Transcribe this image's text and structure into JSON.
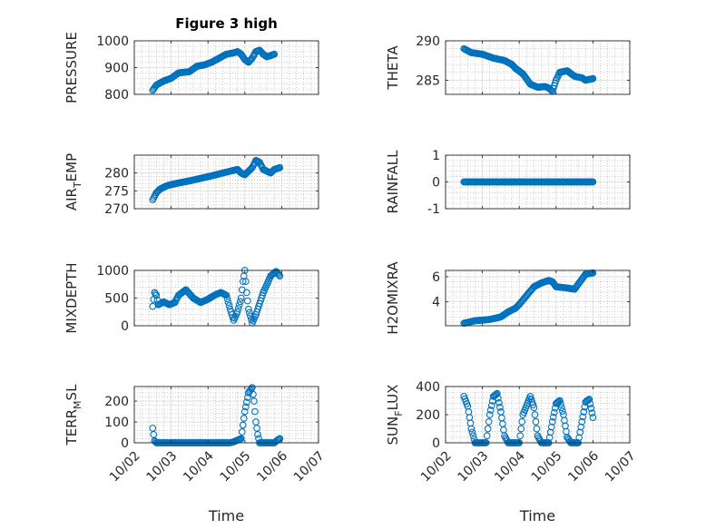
{
  "figure": {
    "title": "Figure 3 high"
  },
  "colors": {
    "marker": "#0072BD",
    "axis": "#262626",
    "grid": "#b0b0b0"
  },
  "chart_data": [
    {
      "type": "scatter",
      "id": "pressure",
      "ylabel": "PRESSURE",
      "xlim": [
        0,
        5
      ],
      "ylim": [
        800,
        1000
      ],
      "yticks": [
        800,
        900,
        1000
      ],
      "yticklabels": [
        "800",
        "900",
        "1000"
      ],
      "xticks": [
        0,
        1,
        2,
        3,
        4,
        5
      ],
      "xticklabels": [],
      "title": "Figure 3 high",
      "keypoints": [
        [
          0.5,
          815
        ],
        [
          0.6,
          835
        ],
        [
          0.8,
          850
        ],
        [
          1.0,
          860
        ],
        [
          1.2,
          880
        ],
        [
          1.5,
          885
        ],
        [
          1.7,
          905
        ],
        [
          1.9,
          910
        ],
        [
          2.1,
          920
        ],
        [
          2.3,
          935
        ],
        [
          2.5,
          950
        ],
        [
          2.7,
          955
        ],
        [
          2.8,
          960
        ],
        [
          2.9,
          950
        ],
        [
          3.0,
          930
        ],
        [
          3.1,
          920
        ],
        [
          3.2,
          935
        ],
        [
          3.3,
          960
        ],
        [
          3.4,
          965
        ],
        [
          3.5,
          950
        ],
        [
          3.6,
          940
        ],
        [
          3.7,
          945
        ],
        [
          3.8,
          950
        ]
      ]
    },
    {
      "type": "scatter",
      "id": "theta",
      "ylabel": "THETA",
      "xlim": [
        0,
        5
      ],
      "ylim": [
        283.2,
        290
      ],
      "yticks": [
        285,
        290
      ],
      "yticklabels": [
        "285",
        "290"
      ],
      "xticks": [
        0,
        1,
        2,
        3,
        4,
        5
      ],
      "xticklabels": [],
      "keypoints": [
        [
          0.5,
          289
        ],
        [
          0.7,
          288.5
        ],
        [
          1.0,
          288.3
        ],
        [
          1.3,
          287.8
        ],
        [
          1.6,
          287.5
        ],
        [
          1.8,
          287
        ],
        [
          1.9,
          286.5
        ],
        [
          2.1,
          285.8
        ],
        [
          2.3,
          284.5
        ],
        [
          2.5,
          284.1
        ],
        [
          2.7,
          284.2
        ],
        [
          2.8,
          284.0
        ],
        [
          2.9,
          283.6
        ],
        [
          3.0,
          285
        ],
        [
          3.1,
          286
        ],
        [
          3.3,
          286.2
        ],
        [
          3.5,
          285.5
        ],
        [
          3.7,
          285.3
        ],
        [
          3.8,
          285.0
        ],
        [
          4.0,
          285.2
        ]
      ]
    },
    {
      "type": "scatter",
      "id": "air-temp",
      "ylabel": "AIR_TEMP",
      "ylabel_parts": [
        "AIR",
        "T",
        "EMP"
      ],
      "xlim": [
        0,
        5
      ],
      "ylim": [
        270,
        285
      ],
      "yticks": [
        270,
        275,
        280
      ],
      "yticklabels": [
        "270",
        "275",
        "280"
      ],
      "xticks": [
        0,
        1,
        2,
        3,
        4,
        5
      ],
      "xticklabels": [],
      "keypoints": [
        [
          0.5,
          272.5
        ],
        [
          0.6,
          274.5
        ],
        [
          0.7,
          275.5
        ],
        [
          0.9,
          276.5
        ],
        [
          1.2,
          277.2
        ],
        [
          1.5,
          277.8
        ],
        [
          1.8,
          278.5
        ],
        [
          2.1,
          279.2
        ],
        [
          2.4,
          280.0
        ],
        [
          2.6,
          280.5
        ],
        [
          2.8,
          281
        ],
        [
          2.9,
          280
        ],
        [
          3.0,
          279.5
        ],
        [
          3.2,
          281.5
        ],
        [
          3.3,
          283.5
        ],
        [
          3.4,
          283
        ],
        [
          3.5,
          281
        ],
        [
          3.7,
          280
        ],
        [
          3.8,
          281
        ],
        [
          3.95,
          281.5
        ]
      ]
    },
    {
      "type": "scatter",
      "id": "rainfall",
      "ylabel": "RAINFALL",
      "xlim": [
        0,
        5
      ],
      "ylim": [
        -1,
        1
      ],
      "yticks": [
        -1,
        0,
        1
      ],
      "yticklabels": [
        "-1",
        "0",
        "1"
      ],
      "xticks": [
        0,
        1,
        2,
        3,
        4,
        5
      ],
      "xticklabels": [],
      "keypoints": [
        [
          0.5,
          0
        ],
        [
          4.0,
          0
        ]
      ]
    },
    {
      "type": "scatter",
      "id": "mixdepth",
      "ylabel": "MIXDEPTH",
      "xlim": [
        0,
        5
      ],
      "ylim": [
        0,
        1000
      ],
      "yticks": [
        0,
        500,
        1000
      ],
      "yticklabels": [
        "0",
        "500",
        "1000"
      ],
      "xticks": [
        0,
        1,
        2,
        3,
        4,
        5
      ],
      "xticklabels": [],
      "keypoints": [
        [
          0.5,
          350
        ],
        [
          0.55,
          600
        ],
        [
          0.6,
          550
        ],
        [
          0.65,
          380
        ],
        [
          0.8,
          430
        ],
        [
          0.95,
          380
        ],
        [
          1.1,
          420
        ],
        [
          1.2,
          550
        ],
        [
          1.4,
          650
        ],
        [
          1.6,
          500
        ],
        [
          1.8,
          420
        ],
        [
          2.0,
          480
        ],
        [
          2.2,
          560
        ],
        [
          2.35,
          600
        ],
        [
          2.5,
          550
        ],
        [
          2.6,
          300
        ],
        [
          2.7,
          100
        ],
        [
          2.8,
          250
        ],
        [
          2.9,
          500
        ],
        [
          2.95,
          800
        ],
        [
          3.0,
          1000
        ],
        [
          3.05,
          600
        ],
        [
          3.1,
          300
        ],
        [
          3.2,
          50
        ],
        [
          3.3,
          200
        ],
        [
          3.5,
          600
        ],
        [
          3.7,
          900
        ],
        [
          3.85,
          980
        ],
        [
          3.95,
          900
        ]
      ]
    },
    {
      "type": "scatter",
      "id": "h2omixra",
      "ylabel": "H2OMIXRA",
      "xlim": [
        0,
        5
      ],
      "ylim": [
        2.1,
        6.5
      ],
      "yticks": [
        4,
        6
      ],
      "yticklabels": [
        "4",
        "6"
      ],
      "xticks": [
        0,
        1,
        2,
        3,
        4,
        5
      ],
      "xticklabels": [],
      "keypoints": [
        [
          0.5,
          2.3
        ],
        [
          0.8,
          2.5
        ],
        [
          1.2,
          2.6
        ],
        [
          1.5,
          2.8
        ],
        [
          1.7,
          3.2
        ],
        [
          1.9,
          3.5
        ],
        [
          2.0,
          3.8
        ],
        [
          2.2,
          4.5
        ],
        [
          2.4,
          5.2
        ],
        [
          2.6,
          5.5
        ],
        [
          2.8,
          5.7
        ],
        [
          2.9,
          5.6
        ],
        [
          3.0,
          5.2
        ],
        [
          3.3,
          5.1
        ],
        [
          3.5,
          5.0
        ],
        [
          3.6,
          5.4
        ],
        [
          3.7,
          5.8
        ],
        [
          3.8,
          6.2
        ],
        [
          4.0,
          6.3
        ]
      ]
    },
    {
      "type": "scatter",
      "id": "terr-msl",
      "ylabel": "TERR_MSL",
      "ylabel_parts": [
        "TERR",
        "M",
        "SL"
      ],
      "xlim": [
        0,
        5
      ],
      "ylim": [
        0,
        270
      ],
      "yticks": [
        0,
        100,
        200
      ],
      "yticklabels": [
        "0",
        "100",
        "200"
      ],
      "xticks": [
        0,
        1,
        2,
        3,
        4,
        5
      ],
      "xticklabels": [
        "10/02",
        "10/03",
        "10/04",
        "10/05",
        "10/06",
        "10/07"
      ],
      "xlabel": "Time",
      "keypoints": [
        [
          0.5,
          70
        ],
        [
          0.55,
          10
        ],
        [
          0.6,
          0
        ],
        [
          1.0,
          0
        ],
        [
          2.0,
          0
        ],
        [
          2.6,
          0
        ],
        [
          2.7,
          5
        ],
        [
          2.9,
          20
        ],
        [
          3.0,
          150
        ],
        [
          3.1,
          240
        ],
        [
          3.2,
          265
        ],
        [
          3.25,
          200
        ],
        [
          3.3,
          100
        ],
        [
          3.35,
          40
        ],
        [
          3.4,
          0
        ],
        [
          3.8,
          0
        ],
        [
          3.9,
          15
        ],
        [
          3.95,
          20
        ]
      ]
    },
    {
      "type": "scatter",
      "id": "sun-flux",
      "ylabel": "SUN_FLUX",
      "ylabel_parts": [
        "SUN",
        "F",
        "LUX"
      ],
      "xlim": [
        0,
        5
      ],
      "ylim": [
        0,
        400
      ],
      "yticks": [
        0,
        200,
        400
      ],
      "yticklabels": [
        "0",
        "200",
        "400"
      ],
      "xticks": [
        0,
        1,
        2,
        3,
        4,
        5
      ],
      "xticklabels": [
        "10/02",
        "10/03",
        "10/04",
        "10/05",
        "10/06",
        "10/07"
      ],
      "xlabel": "Time",
      "keypoints": [
        [
          0.5,
          330
        ],
        [
          0.6,
          260
        ],
        [
          0.7,
          100
        ],
        [
          0.8,
          0
        ],
        [
          1.1,
          0
        ],
        [
          1.2,
          200
        ],
        [
          1.3,
          330
        ],
        [
          1.4,
          350
        ],
        [
          1.5,
          220
        ],
        [
          1.6,
          50
        ],
        [
          1.7,
          0
        ],
        [
          2.0,
          0
        ],
        [
          2.1,
          200
        ],
        [
          2.3,
          330
        ],
        [
          2.4,
          250
        ],
        [
          2.5,
          50
        ],
        [
          2.6,
          0
        ],
        [
          2.8,
          0
        ],
        [
          2.9,
          150
        ],
        [
          3.0,
          280
        ],
        [
          3.1,
          300
        ],
        [
          3.2,
          200
        ],
        [
          3.3,
          40
        ],
        [
          3.4,
          0
        ],
        [
          3.6,
          0
        ],
        [
          3.7,
          150
        ],
        [
          3.8,
          290
        ],
        [
          3.9,
          310
        ],
        [
          4.0,
          180
        ]
      ]
    }
  ]
}
